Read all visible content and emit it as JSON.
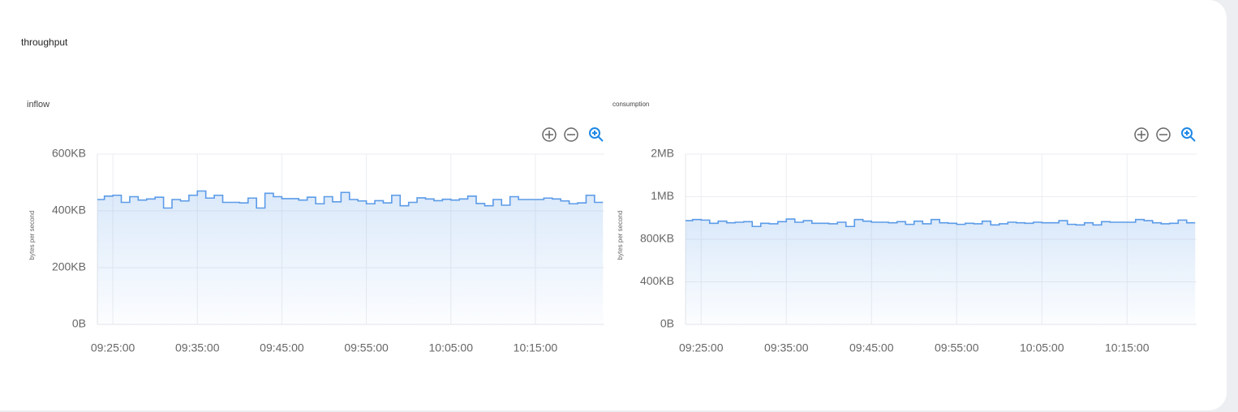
{
  "page_title": "throughput",
  "chart_data": [
    {
      "type": "step-area",
      "title": "inflow",
      "y_label": "bytes per second",
      "color": "#5b9be8",
      "x": [
        "09:23:00",
        "09:24:00",
        "09:25:00",
        "09:26:00",
        "09:27:00",
        "09:28:00",
        "09:29:00",
        "09:30:00",
        "09:31:00",
        "09:32:00",
        "09:33:00",
        "09:34:00",
        "09:35:00",
        "09:36:00",
        "09:37:00",
        "09:38:00",
        "09:39:00",
        "09:40:00",
        "09:41:00",
        "09:42:00",
        "09:43:00",
        "09:44:00",
        "09:45:00",
        "09:46:00",
        "09:47:00",
        "09:48:00",
        "09:49:00",
        "09:50:00",
        "09:51:00",
        "09:52:00",
        "09:53:00",
        "09:54:00",
        "09:55:00",
        "09:56:00",
        "09:57:00",
        "09:58:00",
        "09:59:00",
        "10:00:00",
        "10:01:00",
        "10:02:00",
        "10:03:00",
        "10:04:00",
        "10:05:00",
        "10:06:00",
        "10:07:00",
        "10:08:00",
        "10:09:00",
        "10:10:00",
        "10:11:00",
        "10:12:00",
        "10:13:00",
        "10:14:00",
        "10:15:00",
        "10:16:00",
        "10:17:00",
        "10:18:00",
        "10:19:00",
        "10:20:00",
        "10:21:00",
        "10:22:00",
        "10:23:00"
      ],
      "values": [
        440,
        452,
        455,
        430,
        450,
        438,
        442,
        448,
        410,
        440,
        435,
        455,
        470,
        445,
        455,
        430,
        430,
        428,
        445,
        410,
        462,
        450,
        443,
        443,
        438,
        448,
        425,
        450,
        432,
        465,
        440,
        435,
        425,
        436,
        428,
        455,
        418,
        430,
        446,
        442,
        436,
        441,
        438,
        442,
        452,
        426,
        418,
        440,
        420,
        450,
        440,
        440,
        440,
        445,
        442,
        435,
        425,
        428,
        455,
        430,
        430
      ],
      "xlim": [
        "09:23:10",
        "10:23:10"
      ],
      "xticks": [
        "09:25:00",
        "09:35:00",
        "09:45:00",
        "09:55:00",
        "10:05:00",
        "10:15:00"
      ],
      "ylim": [
        0,
        600
      ],
      "yticks": [
        {
          "value": 0,
          "label": "0B"
        },
        {
          "value": 200,
          "label": "200KB"
        },
        {
          "value": 400,
          "label": "400KB"
        },
        {
          "value": 600,
          "label": "600KB"
        }
      ],
      "grid": true
    },
    {
      "type": "step-area",
      "title": "consumption",
      "y_label": "bytes per second",
      "color": "#5b9be8",
      "x": [
        "09:23:00",
        "09:24:00",
        "09:25:00",
        "09:26:00",
        "09:27:00",
        "09:28:00",
        "09:29:00",
        "09:30:00",
        "09:31:00",
        "09:32:00",
        "09:33:00",
        "09:34:00",
        "09:35:00",
        "09:36:00",
        "09:37:00",
        "09:38:00",
        "09:39:00",
        "09:40:00",
        "09:41:00",
        "09:42:00",
        "09:43:00",
        "09:44:00",
        "09:45:00",
        "09:46:00",
        "09:47:00",
        "09:48:00",
        "09:49:00",
        "09:50:00",
        "09:51:00",
        "09:52:00",
        "09:53:00",
        "09:54:00",
        "09:55:00",
        "09:56:00",
        "09:57:00",
        "09:58:00",
        "09:59:00",
        "10:00:00",
        "10:01:00",
        "10:02:00",
        "10:03:00",
        "10:04:00",
        "10:05:00",
        "10:06:00",
        "10:07:00",
        "10:08:00",
        "10:09:00",
        "10:10:00",
        "10:11:00",
        "10:12:00",
        "10:13:00",
        "10:14:00",
        "10:15:00",
        "10:16:00",
        "10:17:00",
        "10:18:00",
        "10:19:00",
        "10:20:00",
        "10:21:00",
        "10:22:00",
        "10:23:00"
      ],
      "values": [
        975,
        985,
        980,
        950,
        970,
        955,
        960,
        965,
        920,
        950,
        945,
        965,
        990,
        960,
        975,
        950,
        950,
        945,
        960,
        920,
        985,
        970,
        960,
        960,
        955,
        965,
        940,
        970,
        945,
        985,
        955,
        950,
        940,
        950,
        945,
        970,
        935,
        945,
        960,
        955,
        950,
        960,
        955,
        955,
        975,
        940,
        935,
        955,
        935,
        965,
        960,
        960,
        960,
        985,
        975,
        955,
        945,
        950,
        980,
        955,
        955
      ],
      "xlim": [
        "09:23:10",
        "10:23:10"
      ],
      "xticks": [
        "09:25:00",
        "09:35:00",
        "09:45:00",
        "09:55:00",
        "10:05:00",
        "10:15:00"
      ],
      "ylim": [
        0,
        1600
      ],
      "yticks": [
        {
          "value": 0,
          "label": "0B"
        },
        {
          "value": 400,
          "label": "400KB"
        },
        {
          "value": 800,
          "label": "800KB"
        },
        {
          "value": 1200,
          "label": "1MB"
        },
        {
          "value": 1600,
          "label": "2MB"
        }
      ],
      "grid": true
    }
  ]
}
